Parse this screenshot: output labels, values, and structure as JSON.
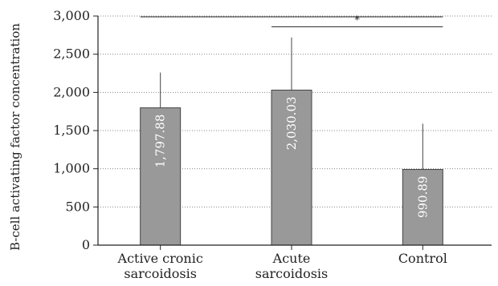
{
  "chart_data": {
    "type": "bar",
    "title": "",
    "xlabel": "",
    "ylabel": "B-cell activating factor concentration",
    "ylim": [
      0,
      3000
    ],
    "yticks": [
      0,
      500,
      1000,
      1500,
      2000,
      2500,
      3000
    ],
    "ytick_labels": [
      "0",
      "500",
      "1,000",
      "1,500",
      "2,000",
      "2,500",
      "3,000"
    ],
    "grid": true,
    "categories": [
      [
        "Active cronic",
        "sarcoidosis"
      ],
      [
        "Acute",
        "sarcoidosis"
      ],
      [
        "Control"
      ]
    ],
    "values": [
      1797.88,
      2030.03,
      990.89
    ],
    "value_labels": [
      "1,797.88",
      "2,030.03",
      "990.89"
    ],
    "error_upper": [
      2260,
      2720,
      1590
    ],
    "significance": [
      {
        "from": 0,
        "to": 2,
        "y": 2990,
        "label": ""
      },
      {
        "from": 1,
        "to": 2,
        "y": 2860,
        "label": "*"
      }
    ],
    "colors": {
      "bar": "#999999",
      "bar_stroke": "#444444",
      "axis": "#222222",
      "grid": "#888888"
    }
  }
}
